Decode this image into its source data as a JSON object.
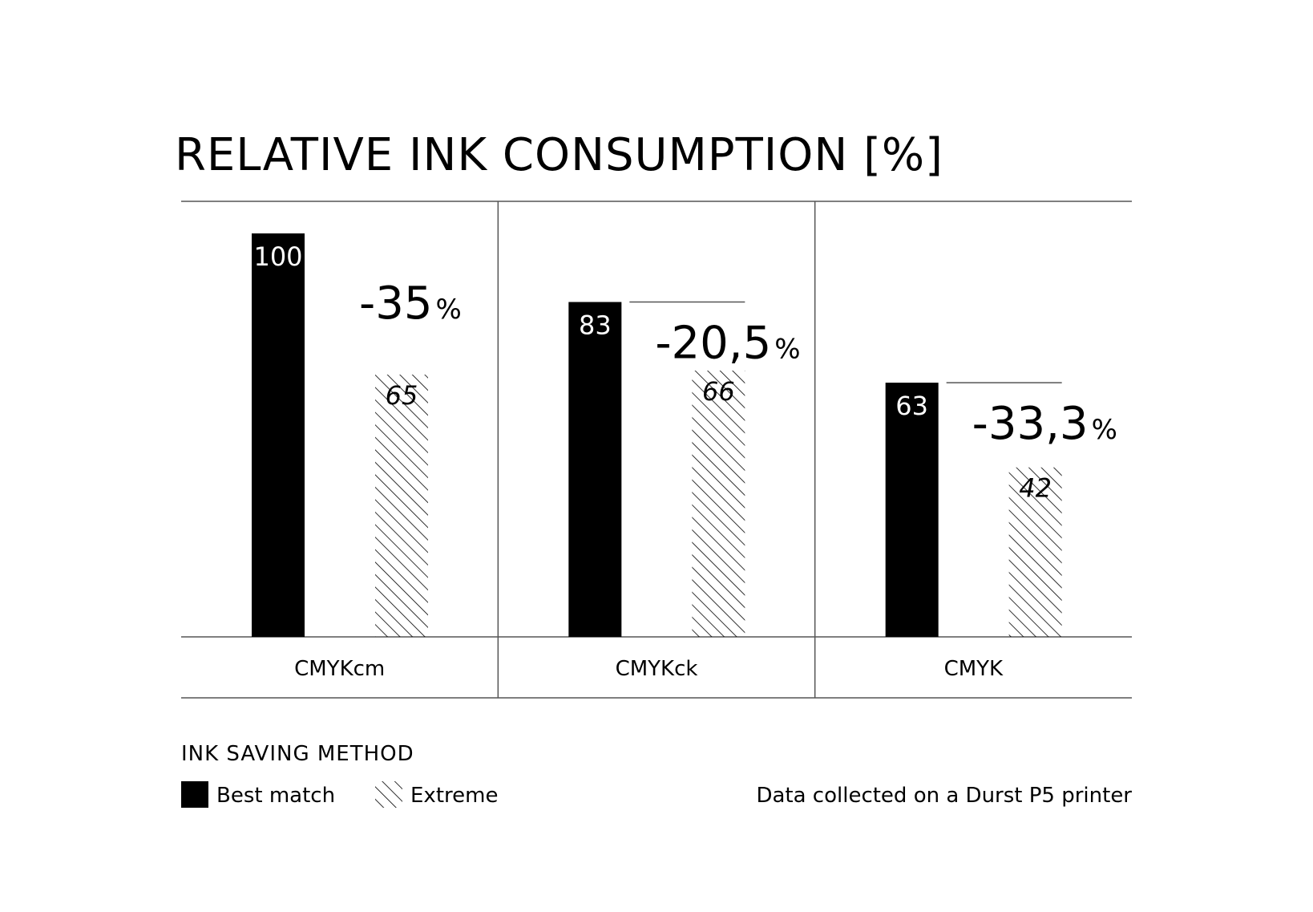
{
  "chart_data": {
    "type": "bar",
    "title": "RELATIVE INK CONSUMPTION [%]",
    "categories": [
      "CMYKcm",
      "CMYKck",
      "CMYK"
    ],
    "series": [
      {
        "name": "Best match",
        "values": [
          100,
          83,
          63
        ],
        "style": "solid",
        "color": "#000000"
      },
      {
        "name": "Extreme",
        "values": [
          65,
          66,
          42
        ],
        "style": "hatched",
        "color": "#000000"
      }
    ],
    "ylim": [
      0,
      108
    ],
    "grid": false,
    "annotations": [
      {
        "category": "CMYKcm",
        "text": "-35",
        "unit": "%"
      },
      {
        "category": "CMYKck",
        "text": "-20,5",
        "unit": "%"
      },
      {
        "category": "CMYK",
        "text": "-33,3",
        "unit": "%"
      }
    ],
    "legend": {
      "title": "INK SAVING METHOD",
      "position": "bottom-left"
    },
    "note": "Data collected on a Durst P5 printer"
  }
}
